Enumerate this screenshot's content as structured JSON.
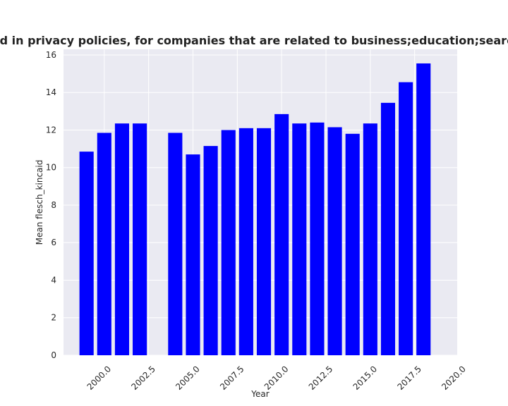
{
  "chart_data": {
    "type": "bar",
    "title": "Mean flesch_kincaid in privacy policies, for companies that are related to business;education;searchenginesandportals",
    "xlabel": "Year",
    "ylabel": "Mean flesch_kincaid",
    "x": [
      1999,
      2000,
      2001,
      2002,
      2004,
      2005,
      2006,
      2007,
      2008,
      2009,
      2010,
      2011,
      2012,
      2013,
      2014,
      2015,
      2016,
      2017,
      2018
    ],
    "values": [
      10.85,
      11.85,
      12.35,
      12.35,
      11.85,
      10.7,
      11.15,
      12.0,
      12.1,
      12.1,
      12.85,
      12.35,
      12.4,
      12.15,
      11.8,
      12.35,
      13.45,
      14.55,
      15.55
    ],
    "xlim": [
      1997.7,
      2019.9
    ],
    "ylim": [
      0,
      16.3
    ],
    "xticks": [
      2000.0,
      2002.5,
      2005.0,
      2007.5,
      2010.0,
      2012.5,
      2015.0,
      2017.5,
      2020.0
    ],
    "xtick_labels": [
      "2000.0",
      "2002.5",
      "2005.0",
      "2007.5",
      "2010.0",
      "2012.5",
      "2015.0",
      "2017.5",
      "2020.0"
    ],
    "yticks": [
      0,
      2,
      4,
      6,
      8,
      10,
      12,
      14,
      16
    ],
    "ytick_labels": [
      "0",
      "2",
      "4",
      "6",
      "8",
      "10",
      "12",
      "14",
      "16"
    ],
    "bar_width": 0.8,
    "bar_color": "#0000ff",
    "plot_bg": "#eaeaf2",
    "grid_color": "#ffffff",
    "grid": true
  }
}
